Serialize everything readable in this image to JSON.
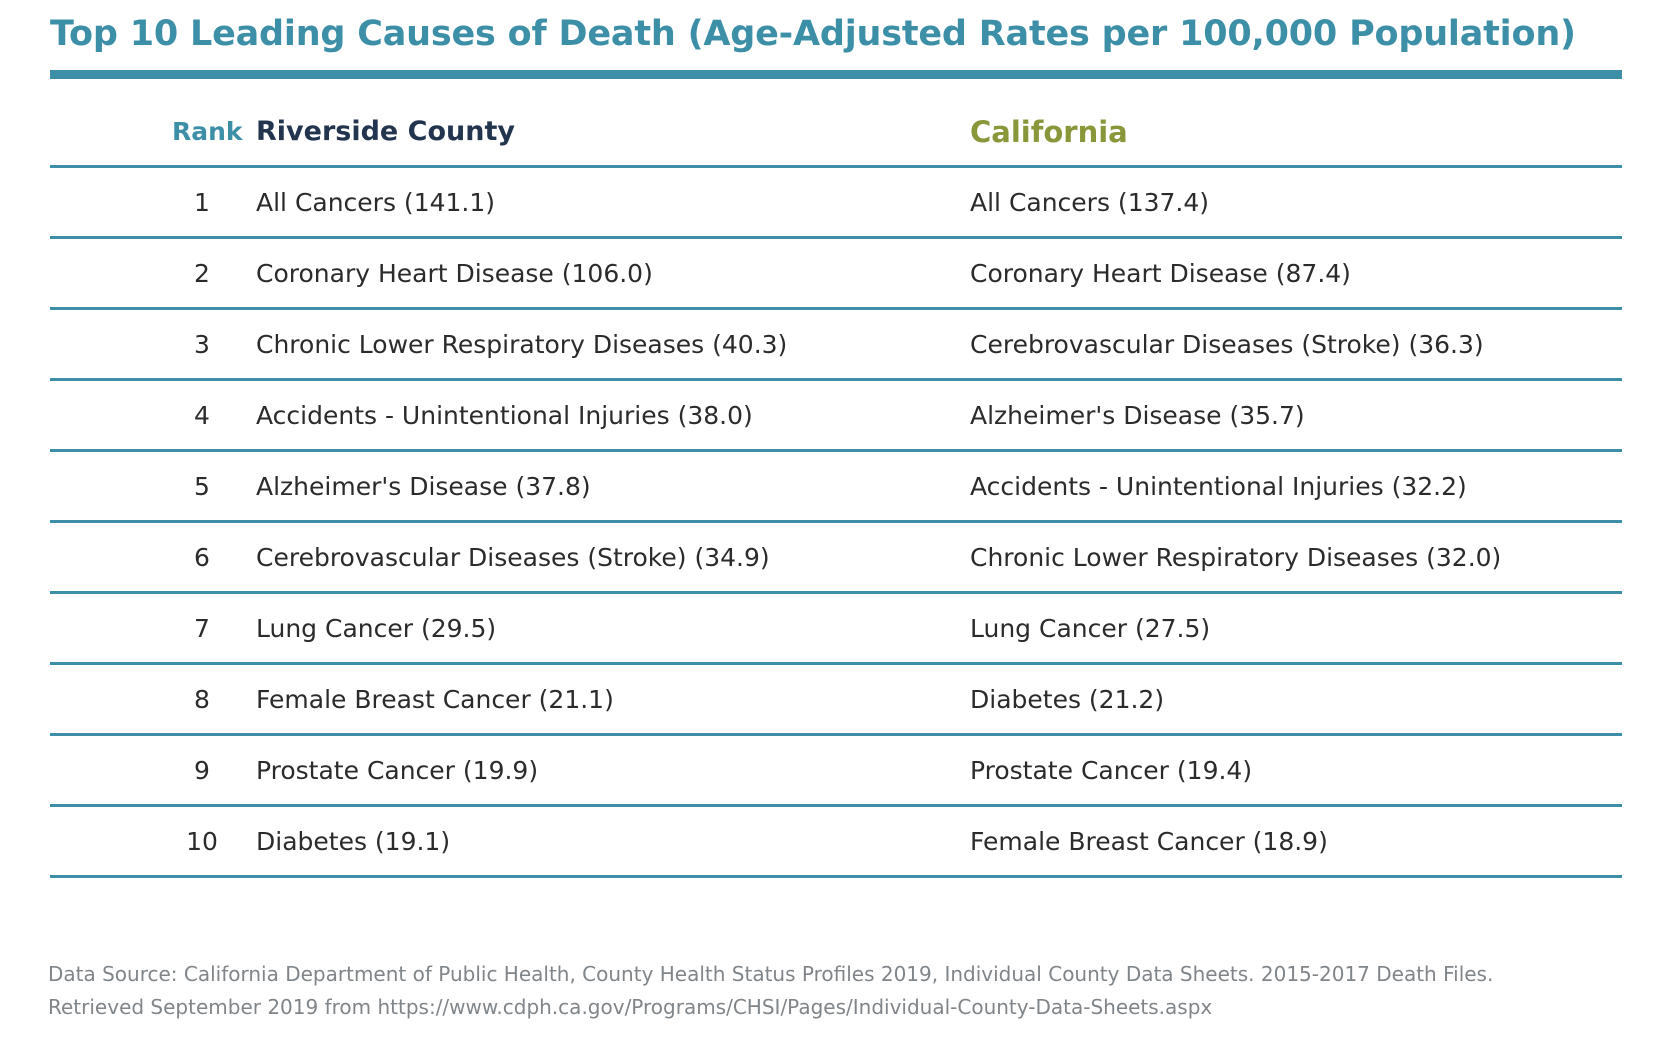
{
  "title": "Top 10 Leading Causes of Death (Age-Adjusted Rates per 100,000 Population)",
  "colors": {
    "accent": "#3d8fa8",
    "county_header": "#23344f",
    "state_header": "#8a963a",
    "source_text": "#808589"
  },
  "table": {
    "headers": {
      "rank": "Rank",
      "county": "Riverside County",
      "state": "California"
    },
    "rows": [
      {
        "rank": "1",
        "county": "All Cancers (141.1)",
        "state": "All Cancers (137.4)"
      },
      {
        "rank": "2",
        "county": "Coronary Heart Disease (106.0)",
        "state": "Coronary Heart Disease (87.4)"
      },
      {
        "rank": "3",
        "county": "Chronic Lower Respiratory Diseases (40.3)",
        "state": "Cerebrovascular Diseases (Stroke) (36.3)"
      },
      {
        "rank": "4",
        "county": "Accidents - Unintentional Injuries (38.0)",
        "state": "Alzheimer's Disease (35.7)"
      },
      {
        "rank": "5",
        "county": "Alzheimer's Disease (37.8)",
        "state": "Accidents - Unintentional Injuries (32.2)"
      },
      {
        "rank": "6",
        "county": "Cerebrovascular Diseases (Stroke) (34.9)",
        "state": "Chronic Lower Respiratory Diseases (32.0)"
      },
      {
        "rank": "7",
        "county": "Lung Cancer (29.5)",
        "state": "Lung Cancer (27.5)"
      },
      {
        "rank": "8",
        "county": "Female Breast Cancer (21.1)",
        "state": "Diabetes (21.2)"
      },
      {
        "rank": "9",
        "county": "Prostate Cancer (19.9)",
        "state": "Prostate Cancer (19.4)"
      },
      {
        "rank": "10",
        "county": "Diabetes (19.1)",
        "state": "Female Breast Cancer (18.9)"
      }
    ]
  },
  "source": {
    "line1": "Data Source: California Department of Public Health, County Health Status Profiles 2019, Individual County Data Sheets. 2015-2017 Death Files.",
    "line2": "Retrieved September 2019 from https://www.cdph.ca.gov/Programs/CHSI/Pages/Individual-County-Data-Sheets.aspx"
  }
}
